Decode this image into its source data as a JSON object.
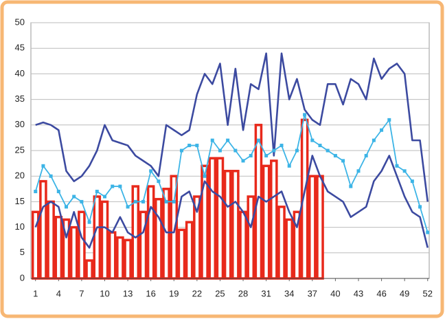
{
  "chart_data": {
    "type": "bar",
    "x": [
      1,
      2,
      3,
      4,
      5,
      6,
      7,
      8,
      9,
      10,
      11,
      12,
      13,
      14,
      15,
      16,
      17,
      18,
      19,
      20,
      21,
      22,
      23,
      24,
      25,
      26,
      27,
      28,
      29,
      30,
      31,
      32,
      33,
      34,
      35,
      36,
      37,
      38,
      39,
      40,
      41,
      42,
      43,
      44,
      45,
      46,
      47,
      48,
      49,
      50,
      51,
      52
    ],
    "series": [
      {
        "type": "bar",
        "color": "#e8291b",
        "values": [
          13,
          19,
          15,
          12,
          11.5,
          10,
          13,
          3.5,
          16,
          15,
          9,
          8,
          7.5,
          18,
          13,
          18,
          15.5,
          17.5,
          20,
          9.5,
          11,
          16,
          22,
          23.5,
          23.5,
          21,
          21,
          13,
          16,
          30,
          22,
          23,
          14,
          11.5,
          13,
          31,
          20,
          20,
          null,
          null,
          null,
          null,
          null,
          null,
          null,
          null,
          null,
          null,
          null,
          null,
          null,
          null
        ]
      },
      {
        "type": "line",
        "color": "#3c4aa0",
        "values": [
          30,
          30.5,
          30,
          29,
          21,
          19,
          20,
          22,
          25,
          30,
          27,
          26.5,
          26,
          24,
          23,
          22,
          20,
          30,
          29,
          28,
          29,
          36,
          40,
          38,
          42,
          30,
          41,
          29,
          38,
          37,
          44,
          24,
          44,
          35,
          39,
          33,
          31,
          30,
          38,
          38,
          34,
          39,
          38,
          35,
          43,
          39,
          41,
          42,
          40,
          27,
          27,
          15
        ]
      },
      {
        "type": "line",
        "color": "#3c4aa0",
        "values": [
          10,
          14,
          15,
          14,
          8,
          13,
          8,
          6,
          10,
          10,
          9,
          12,
          9,
          8,
          9,
          14,
          12,
          9,
          9,
          16,
          17,
          13,
          19,
          17,
          16,
          14,
          15,
          13,
          10,
          16,
          15,
          16,
          17,
          13,
          10,
          17,
          24,
          20,
          17,
          16,
          15,
          12,
          13,
          14,
          19,
          21,
          24,
          20,
          16,
          13,
          12,
          6
        ]
      },
      {
        "type": "line",
        "color": "#3cb4e6",
        "markers": true,
        "values": [
          17,
          22,
          20,
          17,
          14,
          16,
          15,
          11,
          17,
          16,
          18,
          18,
          14,
          15,
          15,
          21,
          19,
          15,
          15,
          25,
          26,
          26,
          20,
          27,
          25,
          27,
          25,
          23,
          24,
          27,
          24,
          25,
          26,
          22,
          25,
          32,
          27,
          26,
          25,
          24,
          23,
          18,
          21,
          24,
          27,
          29,
          31,
          22,
          21,
          19,
          14,
          9
        ]
      }
    ],
    "xlim": [
      0.4,
      52.2
    ],
    "xticks": [
      1,
      4,
      7,
      10,
      13,
      16,
      19,
      22,
      25,
      28,
      31,
      34,
      37,
      40,
      43,
      46,
      49,
      52
    ],
    "ylim": [
      0,
      50
    ],
    "yticks": [
      0,
      5,
      10,
      15,
      20,
      25,
      30,
      35,
      40,
      45,
      50
    ],
    "grid": true
  }
}
